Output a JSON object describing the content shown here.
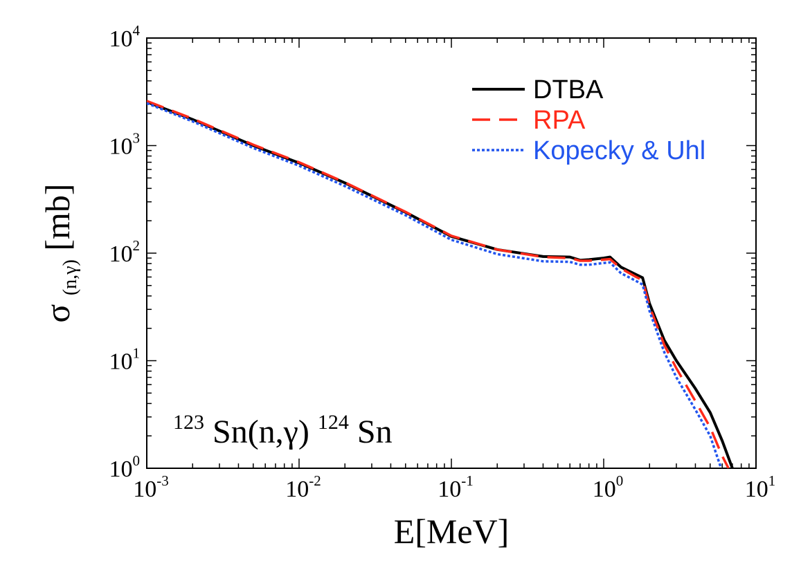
{
  "chart_data": {
    "type": "line",
    "title": "",
    "xlabel": "E[MeV]",
    "ylabel": {
      "base": "σ",
      "sub": "(n,γ)",
      "unit": " [mb]"
    },
    "x_scale": "log",
    "y_scale": "log",
    "xlim": [
      0.001,
      10
    ],
    "ylim": [
      1,
      10000
    ],
    "grid": false,
    "legend_position": "top-right",
    "x_ticks": [
      {
        "value": 0.001,
        "base": "10",
        "exp": "-3"
      },
      {
        "value": 0.01,
        "base": "10",
        "exp": "-2"
      },
      {
        "value": 0.1,
        "base": "10",
        "exp": "-1"
      },
      {
        "value": 1,
        "base": "10",
        "exp": "0"
      },
      {
        "value": 10,
        "base": "10",
        "exp": "1"
      }
    ],
    "y_ticks": [
      {
        "value": 1,
        "base": "10",
        "exp": "0"
      },
      {
        "value": 10,
        "base": "10",
        "exp": "1"
      },
      {
        "value": 100,
        "base": "10",
        "exp": "2"
      },
      {
        "value": 1000,
        "base": "10",
        "exp": "3"
      },
      {
        "value": 10000,
        "base": "10",
        "exp": "4"
      }
    ],
    "annotation": {
      "pre_sup": "123",
      "main": "Sn(n,γ)",
      "mid_sup": "124",
      "post": "Sn"
    },
    "series": [
      {
        "name": "DTBA",
        "color": "#000000",
        "dash": "solid",
        "x": [
          0.001,
          0.002,
          0.005,
          0.01,
          0.02,
          0.05,
          0.1,
          0.2,
          0.4,
          0.6,
          0.7,
          0.8,
          1.0,
          1.1,
          1.3,
          1.6,
          1.8,
          2.0,
          2.5,
          3.0,
          4.0,
          5.0,
          6.0,
          7.0
        ],
        "y": [
          2550,
          1750,
          1000,
          690,
          450,
          240,
          143,
          108,
          93,
          92,
          86,
          87,
          90,
          92,
          74,
          64,
          59,
          34,
          15.5,
          10,
          5.5,
          3.3,
          1.8,
          1.0
        ]
      },
      {
        "name": "RPA",
        "color": "#ff2a1a",
        "dash": "dashed",
        "x": [
          0.001,
          0.002,
          0.005,
          0.01,
          0.02,
          0.05,
          0.1,
          0.2,
          0.4,
          0.6,
          0.7,
          0.8,
          1.0,
          1.1,
          1.3,
          1.6,
          1.8,
          2.0,
          2.5,
          3.0,
          4.0,
          5.0,
          6.0,
          6.6
        ],
        "y": [
          2600,
          1780,
          1020,
          700,
          455,
          242,
          145,
          108,
          92,
          90,
          85,
          85,
          87,
          88,
          72,
          61,
          56,
          32,
          14,
          8.5,
          4.2,
          2.4,
          1.3,
          1.0
        ]
      },
      {
        "name": "Kopecky & Uhl",
        "color": "#2255ee",
        "dash": "dotted",
        "x": [
          0.001,
          0.002,
          0.005,
          0.01,
          0.02,
          0.05,
          0.1,
          0.2,
          0.4,
          0.6,
          0.7,
          0.8,
          1.0,
          1.1,
          1.3,
          1.6,
          1.8,
          2.0,
          2.5,
          3.0,
          4.0,
          5.0,
          5.9
        ],
        "y": [
          2480,
          1680,
          950,
          650,
          420,
          225,
          133,
          98,
          84,
          83,
          78,
          78,
          81,
          82,
          65,
          56,
          51,
          29,
          12,
          7,
          3.5,
          2.0,
          1.0
        ]
      }
    ]
  }
}
